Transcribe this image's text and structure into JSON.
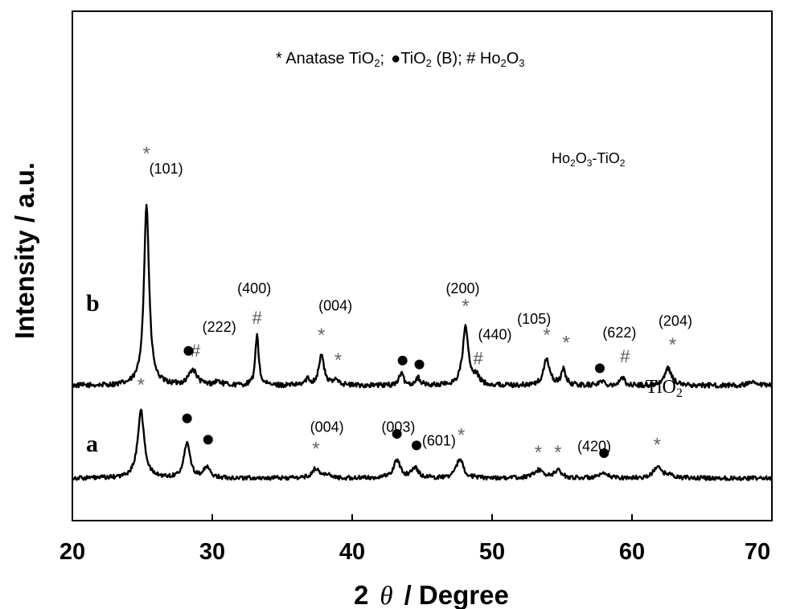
{
  "chart_data": {
    "type": "line",
    "xlabel_prefix": "2",
    "xlabel_theta": "θ",
    "xlabel_suffix": "/  Degree",
    "ylabel": "Intensity / a.u.",
    "xlim": [
      20,
      70
    ],
    "xticks": [
      "20",
      "30",
      "40",
      "50",
      "60",
      "70"
    ],
    "legend": {
      "star_part": "* Anatase TiO",
      "sub2": "2",
      "semicolon": ";",
      "tio2b": "TiO",
      "b_part": " (B); # Ho",
      "o_part": "O",
      "sub3": "3"
    },
    "series": [
      {
        "name": "b",
        "sample_label": "Ho2O3-TiO2",
        "sample_label_parts": [
          "Ho",
          "2",
          "O",
          "3",
          "-TiO",
          "2"
        ],
        "baseline": 0.5,
        "noise_amp": 0.013,
        "peaks": [
          {
            "x": 25.3,
            "h": 0.94,
            "w": 0.22
          },
          {
            "x": 28.6,
            "h": 0.08,
            "w": 0.35
          },
          {
            "x": 30.4,
            "h": 0.02,
            "w": 0.3
          },
          {
            "x": 33.2,
            "h": 0.27,
            "w": 0.14
          },
          {
            "x": 36.8,
            "h": 0.03,
            "w": 0.2
          },
          {
            "x": 37.8,
            "h": 0.16,
            "w": 0.22
          },
          {
            "x": 38.9,
            "h": 0.03,
            "w": 0.25
          },
          {
            "x": 43.5,
            "h": 0.06,
            "w": 0.2
          },
          {
            "x": 44.7,
            "h": 0.04,
            "w": 0.2
          },
          {
            "x": 48.1,
            "h": 0.3,
            "w": 0.25
          },
          {
            "x": 48.9,
            "h": 0.04,
            "w": 0.25
          },
          {
            "x": 53.9,
            "h": 0.14,
            "w": 0.25
          },
          {
            "x": 55.1,
            "h": 0.08,
            "w": 0.2
          },
          {
            "x": 57.8,
            "h": 0.02,
            "w": 0.3
          },
          {
            "x": 59.3,
            "h": 0.04,
            "w": 0.2
          },
          {
            "x": 62.6,
            "h": 0.09,
            "w": 0.3
          },
          {
            "x": 68.5,
            "h": 0.015,
            "w": 0.3
          }
        ]
      },
      {
        "name": "a",
        "sample_label": "TiO2",
        "sample_label_parts": [
          "TiO",
          "2"
        ],
        "baseline": 0.02,
        "noise_amp": 0.011,
        "peaks": [
          {
            "x": 24.9,
            "h": 0.35,
            "w": 0.28
          },
          {
            "x": 28.2,
            "h": 0.19,
            "w": 0.25
          },
          {
            "x": 29.6,
            "h": 0.05,
            "w": 0.3
          },
          {
            "x": 37.4,
            "h": 0.05,
            "w": 0.3
          },
          {
            "x": 38.2,
            "h": 0.02,
            "w": 0.2
          },
          {
            "x": 43.2,
            "h": 0.09,
            "w": 0.3
          },
          {
            "x": 44.5,
            "h": 0.05,
            "w": 0.3
          },
          {
            "x": 47.7,
            "h": 0.1,
            "w": 0.3
          },
          {
            "x": 53.3,
            "h": 0.04,
            "w": 0.4
          },
          {
            "x": 54.7,
            "h": 0.04,
            "w": 0.3
          },
          {
            "x": 58.0,
            "h": 0.02,
            "w": 0.4
          },
          {
            "x": 61.8,
            "h": 0.06,
            "w": 0.3
          },
          {
            "x": 62.6,
            "h": 0.02,
            "w": 0.3
          }
        ]
      }
    ],
    "annotations": [
      {
        "text": "(101)",
        "x": 26.7,
        "y": 1.6,
        "kind": "miller"
      },
      {
        "text": "(222)",
        "x": 30.5,
        "y": 0.78,
        "kind": "miller"
      },
      {
        "text": "(400)",
        "x": 33.0,
        "y": 0.98,
        "kind": "miller"
      },
      {
        "text": "(004)",
        "x": 38.8,
        "y": 0.89,
        "kind": "miller"
      },
      {
        "text": "(200)",
        "x": 47.9,
        "y": 0.98,
        "kind": "miller"
      },
      {
        "text": "(440)",
        "x": 50.2,
        "y": 0.74,
        "kind": "miller"
      },
      {
        "text": "(105)",
        "x": 53.0,
        "y": 0.82,
        "kind": "miller"
      },
      {
        "text": "(622)",
        "x": 59.1,
        "y": 0.75,
        "kind": "miller"
      },
      {
        "text": "(204)",
        "x": 63.1,
        "y": 0.81,
        "kind": "miller"
      },
      {
        "text": "(004)",
        "x": 38.2,
        "y": 0.26,
        "kind": "miller"
      },
      {
        "text": "(003)",
        "x": 43.3,
        "y": 0.26,
        "kind": "miller"
      },
      {
        "text": "(601)",
        "x": 46.2,
        "y": 0.19,
        "kind": "miller"
      },
      {
        "text": "(420)",
        "x": 57.3,
        "y": 0.16,
        "kind": "miller"
      },
      {
        "text": "*",
        "x": 25.3,
        "y": 1.67,
        "kind": "star"
      },
      {
        "text": "*",
        "x": 37.8,
        "y": 0.73,
        "kind": "star"
      },
      {
        "text": "*",
        "x": 39.0,
        "y": 0.6,
        "kind": "star"
      },
      {
        "text": "*",
        "x": 48.1,
        "y": 0.88,
        "kind": "star"
      },
      {
        "text": "*",
        "x": 53.9,
        "y": 0.73,
        "kind": "star"
      },
      {
        "text": "*",
        "x": 55.3,
        "y": 0.69,
        "kind": "star"
      },
      {
        "text": "*",
        "x": 62.9,
        "y": 0.68,
        "kind": "star"
      },
      {
        "text": "*",
        "x": 24.9,
        "y": 0.47,
        "kind": "star"
      },
      {
        "text": "*",
        "x": 37.4,
        "y": 0.14,
        "kind": "star"
      },
      {
        "text": "*",
        "x": 47.8,
        "y": 0.21,
        "kind": "star"
      },
      {
        "text": "*",
        "x": 53.3,
        "y": 0.12,
        "kind": "star"
      },
      {
        "text": "*",
        "x": 54.7,
        "y": 0.12,
        "kind": "star"
      },
      {
        "text": "*",
        "x": 61.8,
        "y": 0.16,
        "kind": "star"
      },
      {
        "text": "#",
        "x": 33.2,
        "y": 0.82,
        "kind": "hash"
      },
      {
        "text": "#",
        "x": 28.8,
        "y": 0.65,
        "kind": "hash"
      },
      {
        "text": "#",
        "x": 49.0,
        "y": 0.61,
        "kind": "hash"
      },
      {
        "text": "#",
        "x": 59.5,
        "y": 0.62,
        "kind": "hash"
      },
      {
        "text": "●",
        "x": 28.3,
        "y": 0.68,
        "kind": "dot"
      },
      {
        "text": "●",
        "x": 43.6,
        "y": 0.63,
        "kind": "dot"
      },
      {
        "text": "●",
        "x": 44.8,
        "y": 0.61,
        "kind": "dot"
      },
      {
        "text": "●",
        "x": 57.7,
        "y": 0.59,
        "kind": "dot"
      },
      {
        "text": "●",
        "x": 28.2,
        "y": 0.33,
        "kind": "dot"
      },
      {
        "text": "●",
        "x": 29.7,
        "y": 0.22,
        "kind": "dot"
      },
      {
        "text": "●",
        "x": 43.2,
        "y": 0.25,
        "kind": "dot"
      },
      {
        "text": "●",
        "x": 44.6,
        "y": 0.19,
        "kind": "dot"
      },
      {
        "text": "●",
        "x": 58.0,
        "y": 0.15,
        "kind": "dot"
      }
    ]
  }
}
